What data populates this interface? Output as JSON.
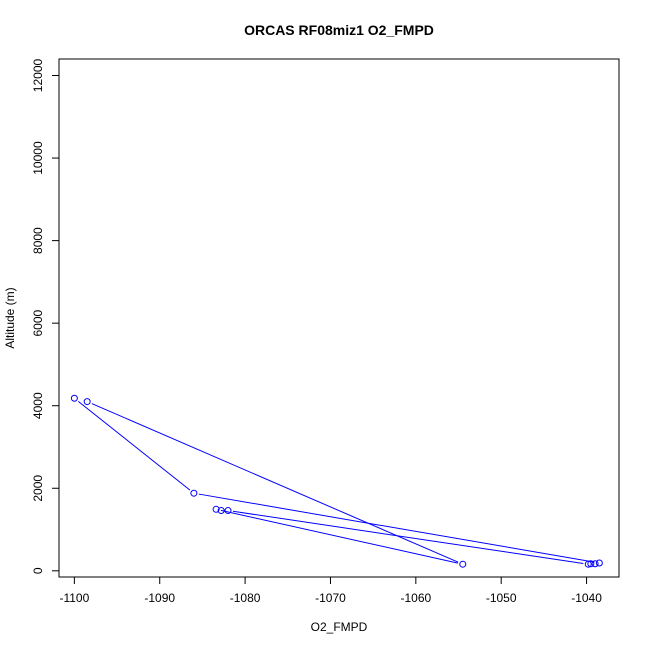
{
  "chart_data": {
    "type": "line",
    "title": "ORCAS RF08miz1 O2_FMPD",
    "xlabel": "O2_FMPD",
    "ylabel": "Altitude (m)",
    "xlim": [
      -1101.8,
      -1036.2
    ],
    "ylim": [
      -150,
      12400
    ],
    "x_ticks": [
      -1100,
      -1090,
      -1080,
      -1070,
      -1060,
      -1050,
      -1040
    ],
    "y_ticks": [
      0,
      2000,
      4000,
      6000,
      8000,
      10000,
      12000
    ],
    "grid": false,
    "markers": "open-circle",
    "line_color": "#0000ff",
    "series": [
      {
        "points": [
          {
            "x": -1100.0,
            "y": 4180
          },
          {
            "x": -1086.0,
            "y": 1880
          },
          {
            "x": -1038.5,
            "y": 190
          },
          {
            "x": -1039.0,
            "y": 170
          },
          {
            "x": -1039.5,
            "y": 170
          },
          {
            "x": -1039.8,
            "y": 160
          },
          {
            "x": -1082.0,
            "y": 1460
          },
          {
            "x": -1082.8,
            "y": 1460
          },
          {
            "x": -1083.4,
            "y": 1490
          },
          {
            "x": -1054.5,
            "y": 160
          },
          {
            "x": -1098.5,
            "y": 4100
          }
        ]
      }
    ]
  }
}
